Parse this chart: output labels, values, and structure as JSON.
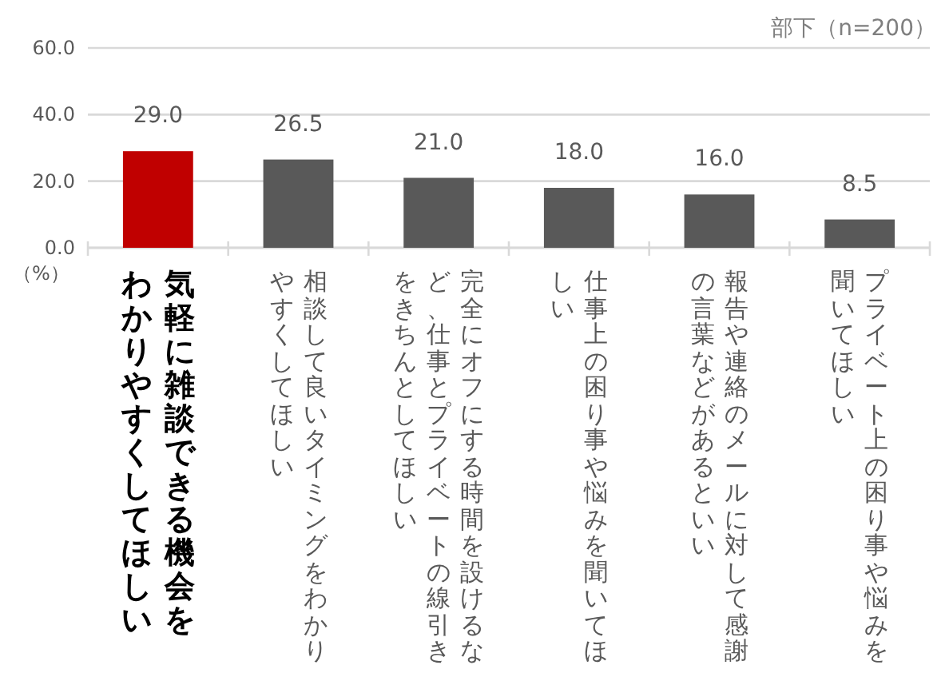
{
  "chart_data": {
    "type": "bar",
    "ylabel": "（%）",
    "annotations": [
      "部下（n=200）"
    ],
    "categories": [
      "気軽に雑談できる機会をわかりやすくしてほしい",
      "相談して良いタイミングをわかりやすくしてほしい",
      "完全にオフにする時間を設けるなど、仕事とプライベートの線引きをきちんとしてほしい",
      "仕事上の困り事や悩みを聞いてほしい",
      "報告や連絡のメールに対して感謝の言葉などがあるといい",
      "プライベート上の困り事や悩みを聞いてほしい"
    ],
    "values": [
      29.0,
      26.5,
      21.0,
      18.0,
      16.0,
      8.5
    ],
    "value_labels": [
      "29.0",
      "26.5",
      "21.0",
      "18.0",
      "16.0",
      "8.5"
    ],
    "colors": [
      "#c00000",
      "#595959",
      "#595959",
      "#595959",
      "#595959",
      "#595959"
    ],
    "ylim": [
      0,
      60
    ],
    "yticks": [
      {
        "value": 0,
        "label": "0.0"
      },
      {
        "value": 20,
        "label": "20.0"
      },
      {
        "value": 40,
        "label": "40.0"
      },
      {
        "value": 60,
        "label": "60.0"
      }
    ],
    "grid": "y"
  }
}
